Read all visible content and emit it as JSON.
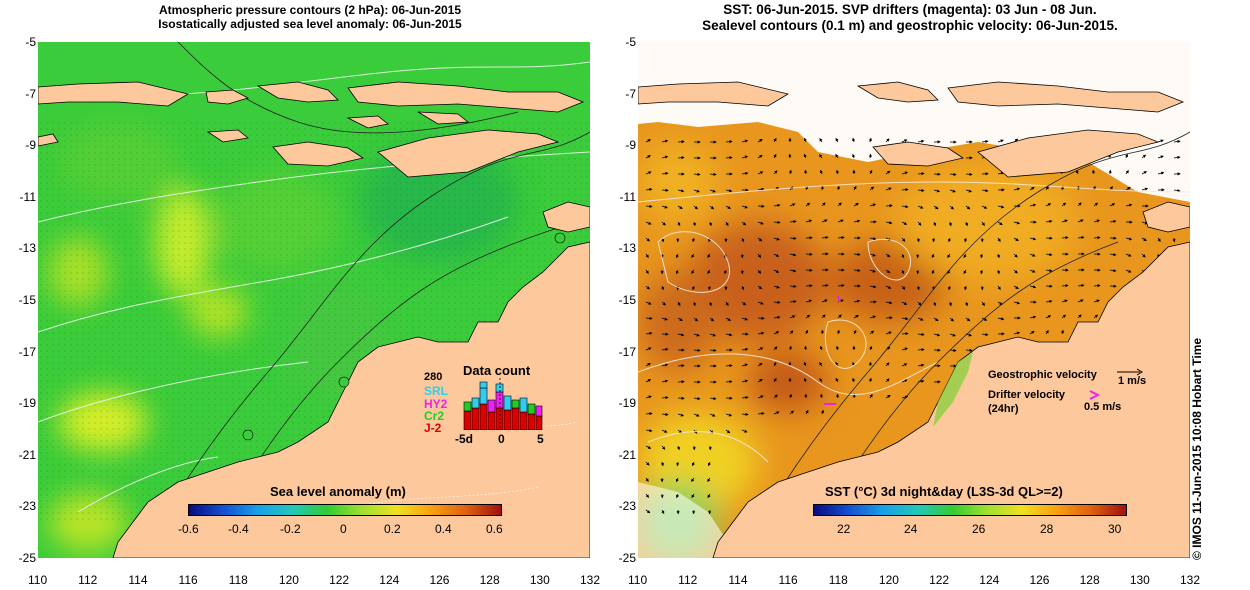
{
  "left_panel": {
    "title_line1": "Atmospheric pressure contours (2 hPa): 06-Jun-2015",
    "title_line2": "Isostatically adjusted sea level anomaly: 06-Jun-2015",
    "colorbar_title": "Sea level anomaly (m)",
    "colorbar_ticks": [
      "-0.6",
      "-0.4",
      "-0.2",
      "0",
      "0.2",
      "0.4",
      "0.6"
    ],
    "inset": {
      "title": "Data count",
      "count_label": "280",
      "missions": [
        {
          "label": "SRL",
          "color": "#33ccee"
        },
        {
          "label": "HY2",
          "color": "#ee22ee"
        },
        {
          "label": "Cr2",
          "color": "#22cc22"
        },
        {
          "label": "J-2",
          "color": "#dd0000"
        }
      ],
      "x_ticks": [
        "-5d",
        "0",
        "5"
      ]
    }
  },
  "right_panel": {
    "title_line1": "SST: 06-Jun-2015. SVP drifters (magenta): 03 Jun - 08 Jun.",
    "title_line2": "Sealevel contours (0.1 m) and geostrophic velocity: 06-Jun-2015.",
    "colorbar_title": "SST (°C) 3d night&day (L3S-3d QL>=2)",
    "colorbar_ticks": [
      "22",
      "24",
      "26",
      "28",
      "30"
    ],
    "legend": {
      "geostrophic_label": "Geostrophic velocity",
      "geostrophic_value": "1 m/s",
      "drifter_label": "Drifter velocity",
      "drifter_sub": "(24hr)",
      "drifter_value": "0.5 m/s",
      "drifter_color": "#ee22ee"
    }
  },
  "x_axis_ticks": [
    "110",
    "112",
    "114",
    "116",
    "118",
    "120",
    "122",
    "124",
    "126",
    "128",
    "130",
    "132"
  ],
  "y_axis_ticks": [
    "-5",
    "-7",
    "-9",
    "-11",
    "-13",
    "-15",
    "-17",
    "-19",
    "-21",
    "-23",
    "-25"
  ],
  "copyright": "© IMOS 11-Jun-2015 10:08 Hobart Time",
  "colors": {
    "land": "#fcc89c",
    "ssl_background": "#33cc33",
    "sst_background": "#e8961e"
  }
}
